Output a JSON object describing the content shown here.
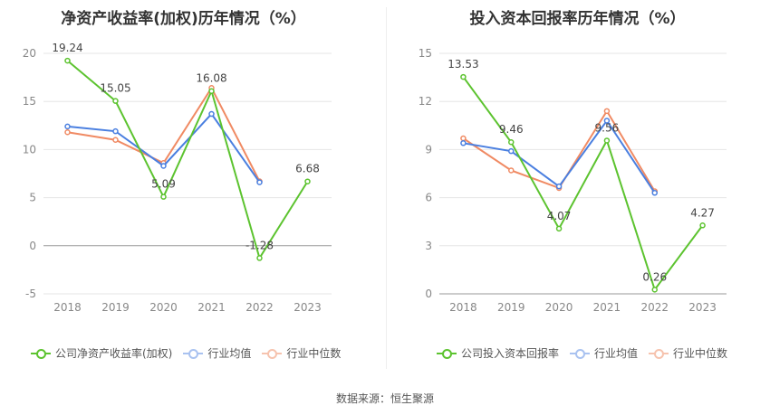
{
  "colors": {
    "company": "#5cc32f",
    "industry_avg": "#4a7fe0",
    "industry_median": "#f08a63"
  },
  "source": "数据来源：恒生聚源",
  "chart_data": [
    {
      "type": "line",
      "title": "净资产收益率(加权)历年情况（%）",
      "categories": [
        "2018",
        "2019",
        "2020",
        "2021",
        "2022",
        "2023"
      ],
      "ylim": [
        -5,
        20
      ],
      "yticks": [
        -5,
        0,
        5,
        10,
        15,
        20
      ],
      "grid": true,
      "legend_position": "bottom",
      "series": [
        {
          "name": "公司净资产收益率(加权)",
          "color": "#5cc32f",
          "values": [
            19.24,
            15.05,
            5.09,
            16.08,
            -1.28,
            6.68
          ],
          "labels": [
            "19.24",
            "15.05",
            "5.09",
            "16.08",
            "-1.28",
            "6.68"
          ]
        },
        {
          "name": "行业均值",
          "color": "#4a7fe0",
          "values": [
            12.4,
            11.9,
            8.3,
            13.7,
            6.6,
            null
          ]
        },
        {
          "name": "行业中位数",
          "color": "#f08a63",
          "values": [
            11.8,
            11.0,
            8.6,
            16.4,
            6.7,
            null
          ]
        }
      ]
    },
    {
      "type": "line",
      "title": "投入资本回报率历年情况（%）",
      "categories": [
        "2018",
        "2019",
        "2020",
        "2021",
        "2022",
        "2023"
      ],
      "ylim": [
        0,
        15
      ],
      "yticks": [
        0,
        3,
        6,
        9,
        12,
        15
      ],
      "grid": true,
      "legend_position": "bottom",
      "series": [
        {
          "name": "公司投入资本回报率",
          "color": "#5cc32f",
          "values": [
            13.53,
            9.46,
            4.07,
            9.56,
            0.26,
            4.27
          ],
          "labels": [
            "13.53",
            "9.46",
            "4.07",
            "9.56",
            "0.26",
            "4.27"
          ]
        },
        {
          "name": "行业均值",
          "color": "#4a7fe0",
          "values": [
            9.4,
            8.9,
            6.7,
            10.8,
            6.3,
            null
          ]
        },
        {
          "name": "行业中位数",
          "color": "#f08a63",
          "values": [
            9.7,
            7.7,
            6.6,
            11.4,
            6.4,
            null
          ]
        }
      ]
    }
  ]
}
